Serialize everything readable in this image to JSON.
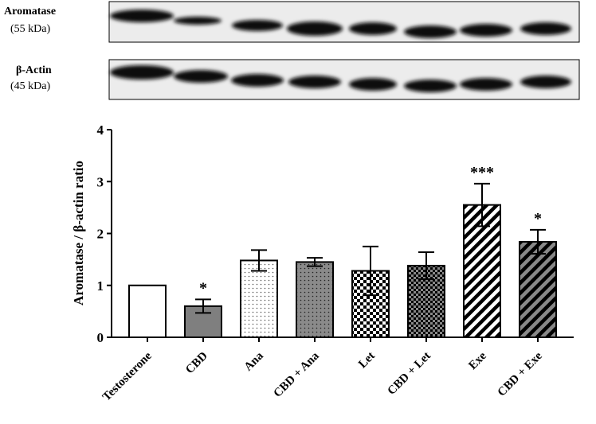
{
  "blot_labels": [
    {
      "name": "Aromatase",
      "size": "(55 kDa)"
    },
    {
      "name": "β-Actin",
      "size": "(45 kDa)"
    }
  ],
  "chart_data": {
    "type": "bar",
    "y_label": "Aromatase / β-actin ratio",
    "categories": [
      "Testosterone",
      "CBD",
      "Ana",
      "CBD + Ana",
      "Let",
      "CBD + Let",
      "Exe",
      "CBD + Exe"
    ],
    "values": [
      1.0,
      0.6,
      1.48,
      1.45,
      1.28,
      1.38,
      2.55,
      1.84
    ],
    "errors": [
      null,
      0.13,
      0.2,
      0.08,
      0.47,
      0.26,
      0.41,
      0.23
    ],
    "annotations": [
      null,
      "*",
      null,
      null,
      null,
      null,
      "***",
      "*"
    ],
    "fills": [
      "#ffffff",
      "#7f7f7f",
      "url(#dots)",
      "url(#dotsGray)",
      "url(#checker)",
      "url(#checkerDark)",
      "url(#stripes)",
      "url(#stripesGray)"
    ],
    "ylim": [
      0,
      4
    ],
    "yticks": [
      0,
      1,
      2,
      3,
      4
    ]
  }
}
